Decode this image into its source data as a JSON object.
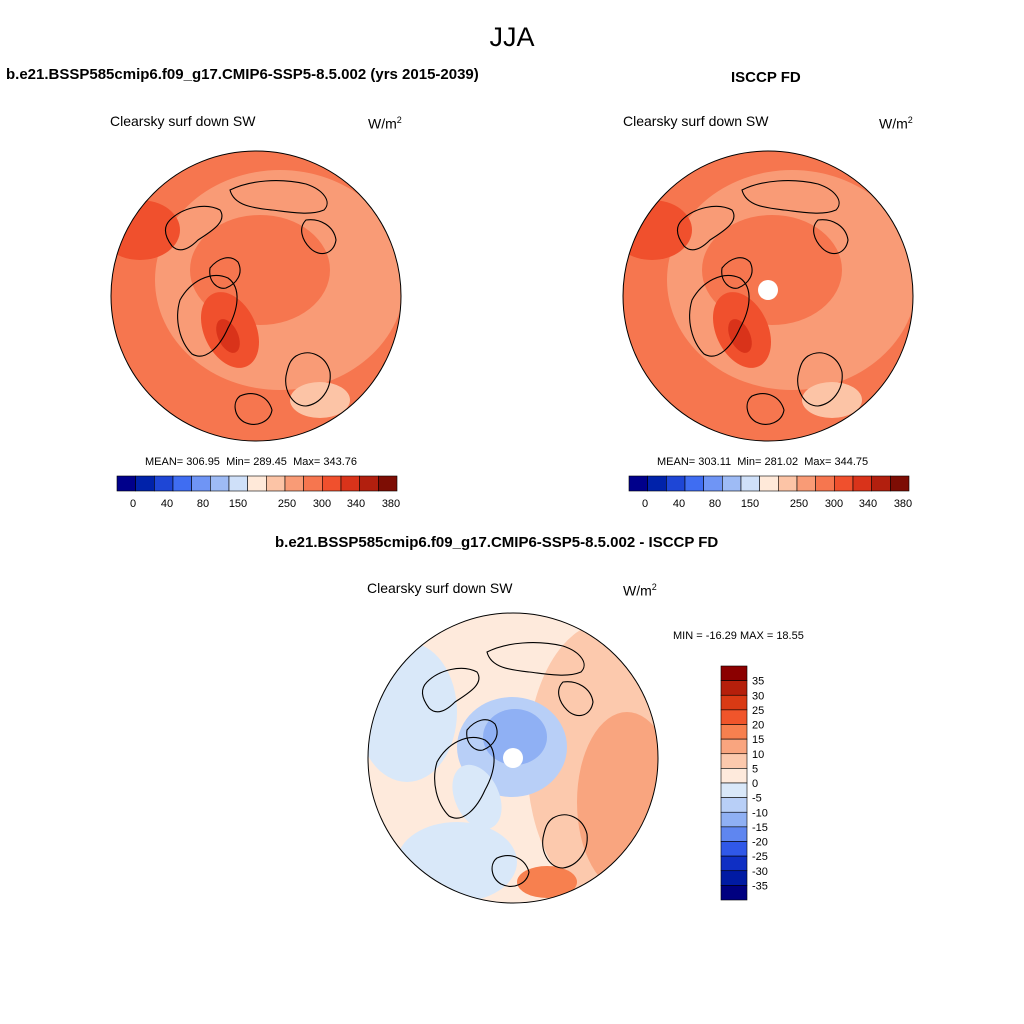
{
  "season": "JJA",
  "panels": [
    {
      "title": "b.e21.BSSP585cmip6.f09_g17.CMIP6-SSP5-8.5.002 (yrs 2015-2039)",
      "variable": "Clearsky surf down SW",
      "units_base": "W/m",
      "units_exp": "2",
      "stats": {
        "mean_label": "MEAN=",
        "mean": "306.95",
        "min_label": "Min=",
        "min": "289.45",
        "max_label": "Max=",
        "max": "343.76"
      },
      "polar_hole": false
    },
    {
      "title": "ISCCP FD",
      "variable": "Clearsky surf down SW",
      "units_base": "W/m",
      "units_exp": "2",
      "stats": {
        "mean_label": "MEAN=",
        "mean": "303.11",
        "min_label": "Min=",
        "min": "281.02",
        "max_label": "Max=",
        "max": "344.75"
      },
      "polar_hole": true
    }
  ],
  "abs_colorbar": {
    "colors": [
      "#00008b",
      "#0022aa",
      "#1e46d6",
      "#3f6df2",
      "#6f95f5",
      "#9ebbf5",
      "#cfe0f9",
      "#ffe9d9",
      "#fcc4a6",
      "#f99b76",
      "#f6764f",
      "#f0502d",
      "#d9331a",
      "#b21f0e",
      "#7d0d04"
    ],
    "tick_labels": [
      "0",
      "40",
      "80",
      "150",
      "250",
      "300",
      "340",
      "380"
    ]
  },
  "diff": {
    "title": "b.e21.BSSP585cmip6.f09_g17.CMIP6-SSP5-8.5.002 - ISCCP FD",
    "variable": "Clearsky surf down SW",
    "units_base": "W/m",
    "units_exp": "2",
    "minmax": "MIN = -16.29 MAX =  18.55",
    "colorbar": {
      "colors": [
        "#8b0000",
        "#b51f0b",
        "#d93a14",
        "#f0552b",
        "#f7804f",
        "#f9a57f",
        "#fcc9ad",
        "#feeadc",
        "#d9e8f9",
        "#b8cff7",
        "#8fb0f4",
        "#5f86f0",
        "#3058e8",
        "#0f2fc4",
        "#001aa3",
        "#000080"
      ],
      "labels": [
        "35",
        "30",
        "25",
        "20",
        "15",
        "10",
        "5",
        "0",
        "-5",
        "-10",
        "-15",
        "-20",
        "-25",
        "-30",
        "-35"
      ]
    }
  }
}
